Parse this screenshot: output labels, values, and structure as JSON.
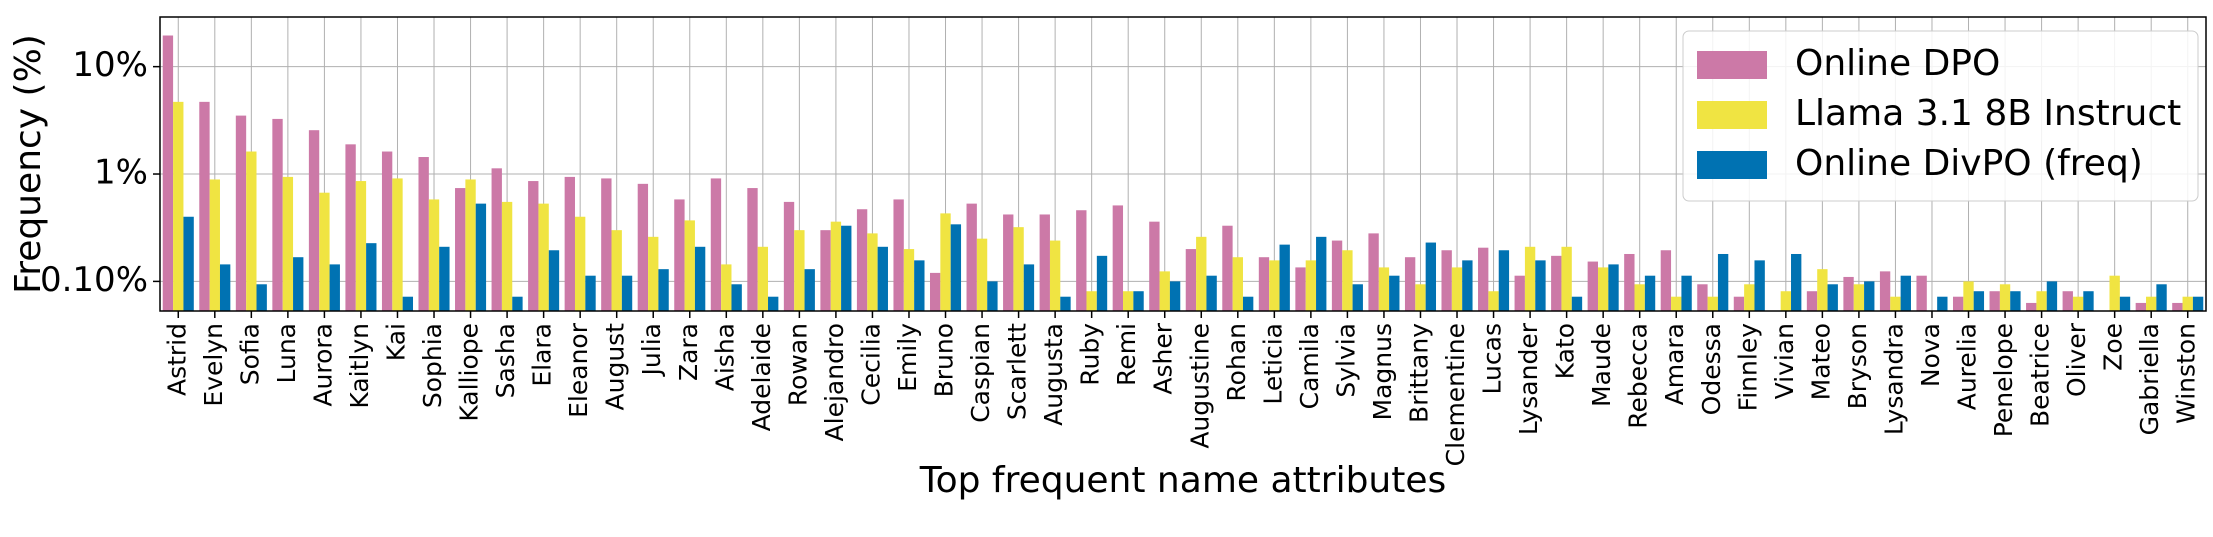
{
  "chart_data": {
    "type": "bar",
    "x_label": "Top frequent name attributes",
    "y_label": "Frequency (%)",
    "log_y": true,
    "grid": true,
    "legend": "upper right",
    "categories": [
      "Astrid",
      "Evelyn",
      "Sofia",
      "Luna",
      "Aurora",
      "Kaitlyn",
      "Kai",
      "Sophia",
      "Kalliope",
      "Sasha",
      "Elara",
      "Eleanor",
      "August",
      "Julia",
      "Zara",
      "Aisha",
      "Adelaide",
      "Rowan",
      "Alejandro",
      "Cecilia",
      "Emily",
      "Bruno",
      "Caspian",
      "Scarlett",
      "Augusta",
      "Ruby",
      "Remi",
      "Asher",
      "Augustine",
      "Rohan",
      "Leticia",
      "Camila",
      "Sylvia",
      "Magnus",
      "Brittany",
      "Clementine",
      "Lucas",
      "Lysander",
      "Kato",
      "Maude",
      "Rebecca",
      "Amara",
      "Odessa",
      "Finnley",
      "Vivian",
      "Mateo",
      "Bryson",
      "Lysandra",
      "Nova",
      "Aurelia",
      "Penelope",
      "Beatrice",
      "Oliver",
      "Zoe",
      "Gabriella",
      "Winston"
    ],
    "series": [
      {
        "name": "Online DPO",
        "color": "#cc79a7",
        "values": [
          19.5,
          4.7,
          3.5,
          3.26,
          2.56,
          1.89,
          1.62,
          1.44,
          0.74,
          1.13,
          0.86,
          0.94,
          0.91,
          0.81,
          0.58,
          0.91,
          0.74,
          0.55,
          0.3,
          0.47,
          0.58,
          0.12,
          0.53,
          0.42,
          0.42,
          0.46,
          0.51,
          0.36,
          0.2,
          0.33,
          0.168,
          0.135,
          0.24,
          0.28,
          0.168,
          0.195,
          0.206,
          0.113,
          0.173,
          0.153,
          0.18,
          0.195,
          0.094,
          0.072,
          null,
          0.081,
          0.11,
          0.124,
          0.113,
          0.072,
          0.081,
          0.063,
          0.081,
          null,
          0.063,
          0.063
        ]
      },
      {
        "name": "Llama 3.1 8B Instruct",
        "color": "#f0e442",
        "values": [
          4.7,
          0.89,
          1.62,
          0.94,
          0.67,
          0.86,
          0.91,
          0.58,
          0.89,
          0.55,
          0.53,
          0.4,
          0.3,
          0.26,
          0.37,
          0.144,
          0.21,
          0.3,
          0.36,
          0.28,
          0.2,
          0.43,
          0.25,
          0.32,
          0.24,
          0.081,
          0.081,
          0.124,
          0.26,
          0.168,
          0.157,
          0.157,
          0.195,
          0.135,
          0.094,
          0.135,
          0.081,
          0.21,
          0.21,
          0.135,
          0.094,
          0.072,
          0.072,
          0.094,
          0.081,
          0.13,
          0.094,
          0.072,
          null,
          0.1,
          0.094,
          0.081,
          0.072,
          0.113,
          0.072,
          0.072
        ]
      },
      {
        "name": "Online DivPO (freq)",
        "color": "#0072b2",
        "values": [
          0.4,
          0.144,
          0.094,
          0.168,
          0.144,
          0.227,
          0.072,
          0.21,
          0.53,
          0.072,
          0.195,
          0.113,
          0.113,
          0.13,
          0.21,
          0.094,
          0.072,
          0.13,
          0.33,
          0.21,
          0.157,
          0.34,
          0.1,
          0.144,
          0.072,
          0.173,
          0.081,
          0.1,
          0.113,
          0.072,
          0.22,
          0.26,
          0.094,
          0.113,
          0.23,
          0.157,
          0.195,
          0.157,
          0.072,
          0.144,
          0.113,
          0.113,
          0.18,
          0.157,
          0.18,
          0.094,
          0.1,
          0.113,
          0.072,
          0.081,
          0.081,
          0.1,
          0.081,
          0.072,
          0.094,
          0.072
        ]
      }
    ],
    "ylim": [
      0.053,
      29
    ],
    "yticks": [
      {
        "value": 0.1,
        "label": "0.10%"
      },
      {
        "value": 1,
        "label": "1%"
      },
      {
        "value": 10,
        "label": "10%"
      }
    ]
  }
}
